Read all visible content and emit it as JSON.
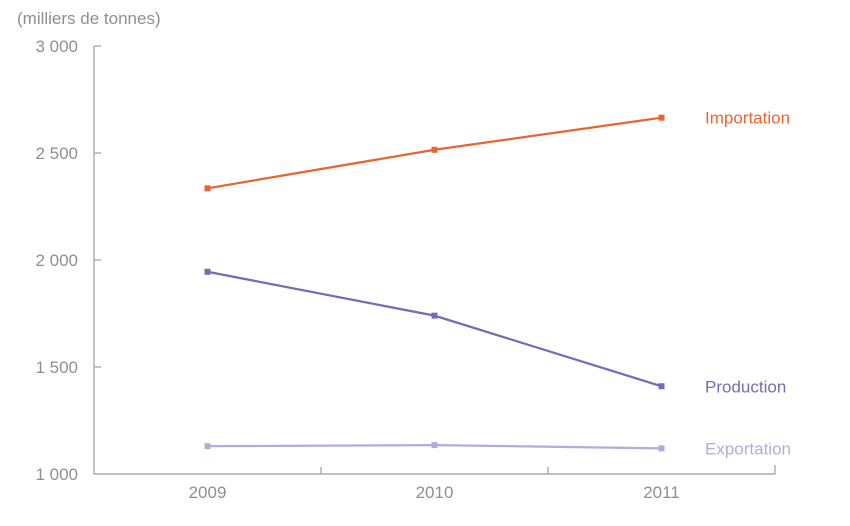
{
  "chart_data": {
    "type": "line",
    "unit_label": "(milliers de tonnes)",
    "categories": [
      "2009",
      "2010",
      "2011"
    ],
    "series": [
      {
        "name": "Importation",
        "color": "#e7652f",
        "values": [
          2335,
          2515,
          2665
        ]
      },
      {
        "name": "Production",
        "color": "#746cb4",
        "values": [
          1945,
          1740,
          1410
        ]
      },
      {
        "name": "Exportation",
        "color": "#b3abdc",
        "values": [
          1130,
          1135,
          1120
        ]
      }
    ],
    "xlabel": "",
    "ylabel": "",
    "ylim": [
      1000,
      3000
    ],
    "yticks": [
      1000,
      1500,
      2000,
      2500,
      3000
    ],
    "ytick_labels": [
      "1 000",
      "1 500",
      "2 000",
      "2 500",
      "3 000"
    ],
    "grid": false,
    "legend_position": "right-of-last-point",
    "axis_color": "#ababab",
    "text_color": "#8f8f8f"
  }
}
